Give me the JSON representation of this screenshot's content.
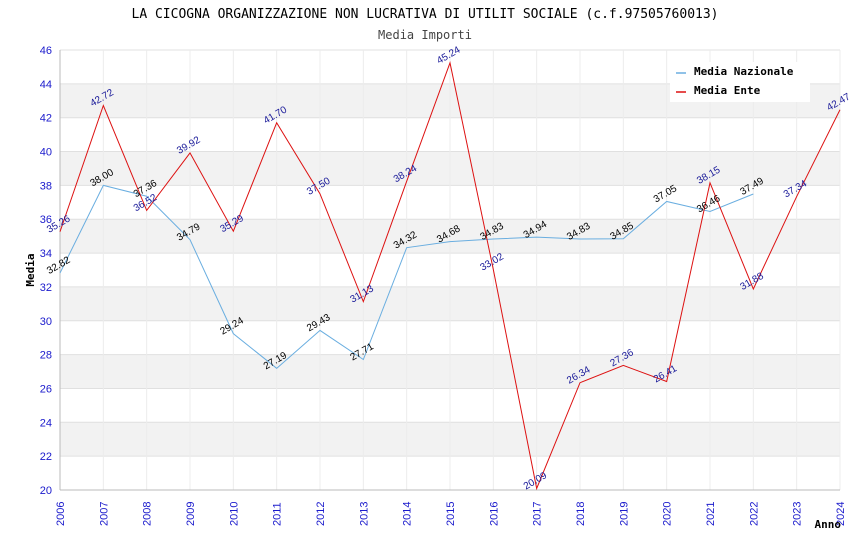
{
  "chart_data": {
    "type": "line",
    "title": "LA CICOGNA ORGANIZZAZIONE NON LUCRATIVA DI UTILIT SOCIALE (c.f.97505760013)",
    "subtitle": "Media Importi",
    "xlabel": "Anno",
    "ylabel": "Media",
    "ylim": [
      20,
      46
    ],
    "yticks": [
      20,
      22,
      24,
      26,
      28,
      30,
      32,
      34,
      36,
      38,
      40,
      42,
      44,
      46
    ],
    "x": [
      2006,
      2007,
      2008,
      2009,
      2010,
      2011,
      2012,
      2013,
      2014,
      2015,
      2016,
      2017,
      2018,
      2019,
      2020,
      2021,
      2022,
      2023,
      2024
    ],
    "grid": "horizontal",
    "legend_position": "top-right",
    "series": [
      {
        "name": "Media Nazionale",
        "color": "#6aaee0",
        "values": [
          32.82,
          38.0,
          37.36,
          34.79,
          29.24,
          27.19,
          29.43,
          27.71,
          34.32,
          34.68,
          34.83,
          34.94,
          34.83,
          34.85,
          37.05,
          36.46,
          37.49,
          null,
          null
        ],
        "labels": [
          "32.82",
          "38.00",
          "37.36",
          "34.79",
          "29.24",
          "27.19",
          "29.43",
          "27.71",
          "34.32",
          "34.68",
          "34.83",
          "34.94",
          "34.83",
          "34.85",
          "37.05",
          "36.46",
          "37.49",
          null,
          null
        ]
      },
      {
        "name": "Media Ente",
        "color": "#dd1111",
        "values": [
          35.26,
          42.72,
          36.52,
          39.92,
          35.29,
          41.7,
          37.5,
          31.13,
          38.24,
          45.24,
          33.02,
          20.09,
          26.34,
          27.36,
          26.41,
          38.15,
          31.88,
          37.34,
          42.47
        ],
        "labels": [
          "35.26",
          "42.72",
          "36.52",
          "39.92",
          "35.29",
          "41.70",
          "37.50",
          "31.13",
          "38.24",
          "45.24",
          "33.02",
          "20.09",
          "26.34",
          "27.36",
          "26.41",
          "38.15",
          "31.88",
          "37.34",
          "42.47"
        ]
      }
    ]
  }
}
